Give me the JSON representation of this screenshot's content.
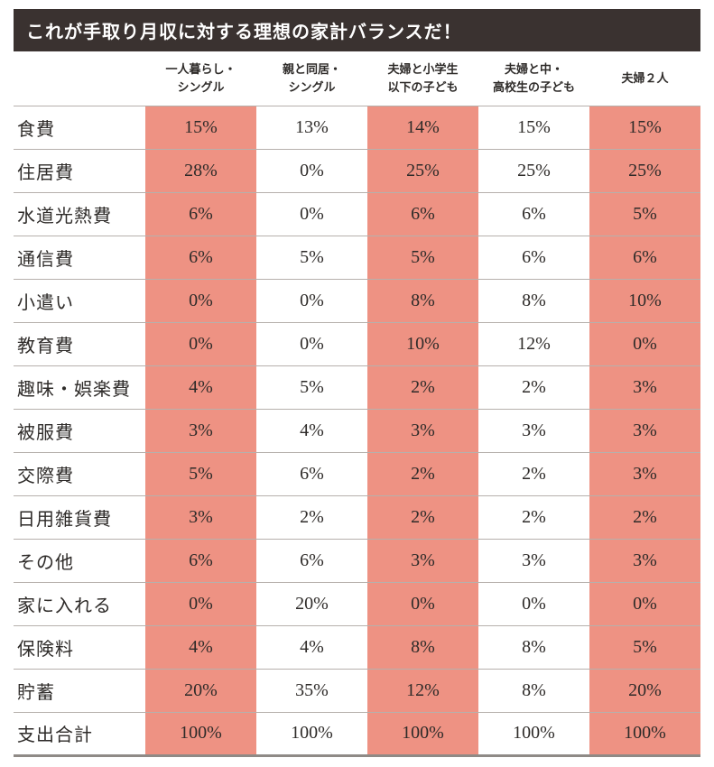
{
  "title": "これが手取り月収に対する理想の家計バランスだ！",
  "colors": {
    "accent_salmon": "#ee9283",
    "title_bg": "#3a3230",
    "grid_line": "#b6b0ac"
  },
  "chart_data": {
    "type": "table",
    "title": "これが手取り月収に対する理想の家計バランスだ！",
    "columns": [
      {
        "label": "一人暮らし・\nシングル",
        "shaded": true
      },
      {
        "label": "親と同居・\nシングル",
        "shaded": false
      },
      {
        "label": "夫婦と小学生\n以下の子ども",
        "shaded": true
      },
      {
        "label": "夫婦と中・\n高校生の子ども",
        "shaded": false
      },
      {
        "label": "夫婦２人",
        "shaded": true
      }
    ],
    "shaded_columns": [
      0,
      2,
      4
    ],
    "rows": [
      {
        "label": "食費",
        "values": [
          "15%",
          "13%",
          "14%",
          "15%",
          "15%"
        ]
      },
      {
        "label": "住居費",
        "values": [
          "28%",
          "0%",
          "25%",
          "25%",
          "25%"
        ]
      },
      {
        "label": "水道光熱費",
        "values": [
          "6%",
          "0%",
          "6%",
          "6%",
          "5%"
        ]
      },
      {
        "label": "通信費",
        "values": [
          "6%",
          "5%",
          "5%",
          "6%",
          "6%"
        ]
      },
      {
        "label": "小遣い",
        "values": [
          "0%",
          "0%",
          "8%",
          "8%",
          "10%"
        ]
      },
      {
        "label": "教育費",
        "values": [
          "0%",
          "0%",
          "10%",
          "12%",
          "0%"
        ]
      },
      {
        "label": "趣味・娯楽費",
        "values": [
          "4%",
          "5%",
          "2%",
          "2%",
          "3%"
        ]
      },
      {
        "label": "被服費",
        "values": [
          "3%",
          "4%",
          "3%",
          "3%",
          "3%"
        ]
      },
      {
        "label": "交際費",
        "values": [
          "5%",
          "6%",
          "2%",
          "2%",
          "3%"
        ]
      },
      {
        "label": "日用雑貨費",
        "values": [
          "3%",
          "2%",
          "2%",
          "2%",
          "2%"
        ]
      },
      {
        "label": "その他",
        "values": [
          "6%",
          "6%",
          "3%",
          "3%",
          "3%"
        ]
      },
      {
        "label": "家に入れる",
        "values": [
          "0%",
          "20%",
          "0%",
          "0%",
          "0%"
        ]
      },
      {
        "label": "保険料",
        "values": [
          "4%",
          "4%",
          "8%",
          "8%",
          "5%"
        ]
      },
      {
        "label": "貯蓄",
        "values": [
          "20%",
          "35%",
          "12%",
          "8%",
          "20%"
        ]
      },
      {
        "label": "支出合計",
        "values": [
          "100%",
          "100%",
          "100%",
          "100%",
          "100%"
        ]
      }
    ]
  }
}
